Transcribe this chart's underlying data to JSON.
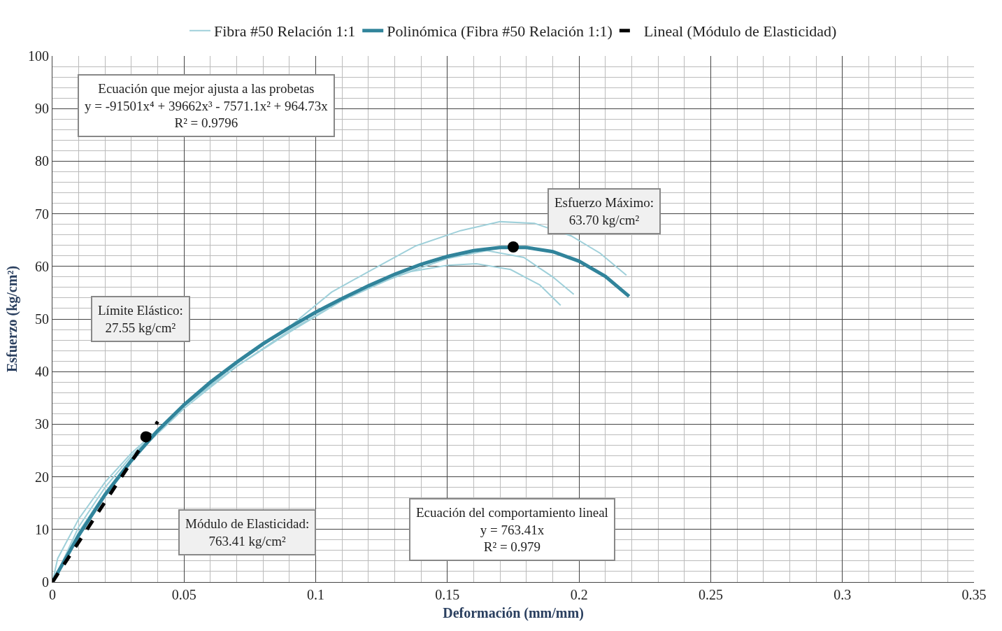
{
  "chart_data": {
    "type": "line",
    "xlabel": "Deformación (mm/mm)",
    "ylabel": "Esfuerzo (kg/cm²)",
    "xlim": [
      0,
      0.35
    ],
    "xticks": [
      0,
      0.05,
      0.1,
      0.15,
      0.2,
      0.25,
      0.3,
      0.35
    ],
    "ylim": [
      0,
      100
    ],
    "yticks": [
      0,
      10,
      20,
      30,
      40,
      50,
      60,
      70,
      80,
      90,
      100
    ],
    "grid": true,
    "legend": "top",
    "series": [
      {
        "name": "Fibra #50 Relación 1:1",
        "color": "#9fd0da",
        "x": [
          0,
          0.002,
          0.01,
          0.02,
          0.03,
          0.05,
          0.07,
          0.09,
          0.106,
          0.12,
          0.138,
          0.155,
          0.17,
          0.183,
          0.197,
          0.208,
          0.218
        ],
        "values": [
          0,
          4.5,
          12,
          19,
          24.5,
          33.5,
          41.5,
          48.5,
          55.1,
          59,
          63.9,
          66.8,
          68.5,
          68.2,
          65.8,
          62.5,
          58.3
        ]
      },
      {
        "color": "#9fd0da",
        "x": [
          0,
          0.003,
          0.01,
          0.02,
          0.03,
          0.05,
          0.07,
          0.09,
          0.11,
          0.125,
          0.136,
          0.15,
          0.161,
          0.174,
          0.185,
          0.193
        ],
        "values": [
          0,
          3,
          10.5,
          18,
          24,
          33.5,
          41,
          47.5,
          53.5,
          57,
          59,
          60.2,
          60.5,
          59.4,
          56.5,
          52.6
        ]
      },
      {
        "color": "#9fd0da",
        "x": [
          0,
          0.01,
          0.02,
          0.03,
          0.05,
          0.07,
          0.09,
          0.11,
          0.13,
          0.15,
          0.165,
          0.179,
          0.19,
          0.198
        ],
        "values": [
          0,
          9.5,
          17,
          23.5,
          33,
          41,
          47.8,
          53.5,
          58,
          61.5,
          63,
          61.7,
          58,
          54.7
        ]
      },
      {
        "name": "Polinómica (Fibra #50 Relación 1:1)",
        "color": "#31849b",
        "x": [
          0,
          0.01,
          0.02,
          0.03,
          0.04,
          0.05,
          0.06,
          0.07,
          0.08,
          0.09,
          0.1,
          0.11,
          0.12,
          0.13,
          0.14,
          0.15,
          0.16,
          0.17,
          0.18,
          0.19,
          0.2,
          0.21,
          0.219
        ],
        "values": [
          0,
          8.9,
          16.6,
          23.1,
          28.8,
          33.7,
          38,
          41.8,
          45.3,
          48.4,
          51.3,
          53.9,
          56.3,
          58.5,
          60.4,
          61.9,
          63,
          63.6,
          63.6,
          62.8,
          61,
          58.1,
          54.3
        ]
      },
      {
        "name": "Lineal (Módulo de Elasticidad)",
        "color": "#000000",
        "line_style": "dashed",
        "x": [
          0,
          0.04
        ],
        "values": [
          0,
          30.5
        ]
      },
      {
        "type": "scatter",
        "color": "#000000",
        "x": [
          0.0355,
          0.175
        ],
        "values": [
          27.6,
          63.7
        ]
      }
    ],
    "annotations": [
      "Ecuación que mejor ajusta a las probetas\ny = -91501x⁴ + 39662x³ - 7571.1x² + 964.73x\nR² = 0.9796",
      "Esfuerzo Máximo:\n63.70 kg/cm²",
      "Límite Elástico:\n27.55 kg/cm²",
      "Módulo de Elasticidad:\n763.41 kg/cm²",
      "Ecuación del comportamiento lineal\ny = 763.41x\nR² = 0.979"
    ]
  }
}
